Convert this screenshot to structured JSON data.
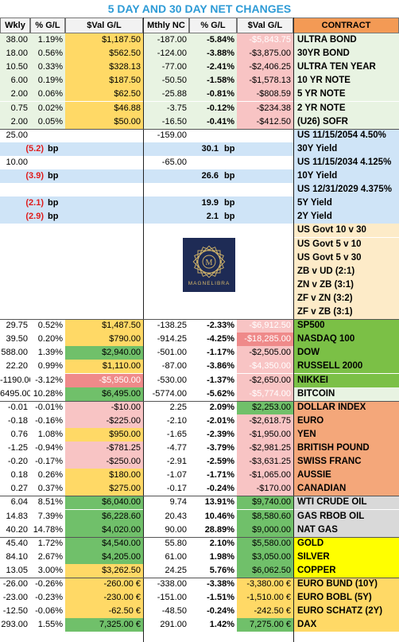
{
  "title": "5 DAY AND 30 DAY NET CHANGES",
  "headers": [
    "Wkly NC",
    "% G/L",
    "$Val G/L",
    "Mthly NC",
    "% G/L",
    "$Val G/L",
    "CONTRACT"
  ],
  "logo_text": "MAGNELIBRA",
  "logo_mark": "M",
  "bp_unit": "bp",
  "rows": [
    {
      "bg": "#e8f3e2",
      "w": "38.00",
      "wp": "1.19%",
      "wv": "$1,187.50",
      "wvc": "yl",
      "m": "-187.00",
      "mp": "-5.84%",
      "mv": "-$5,843.75",
      "mvc": "pk",
      "mvcol": "#ffffff",
      "c": "ULTRA BOND"
    },
    {
      "bg": "#e8f3e2",
      "w": "18.00",
      "wp": "0.56%",
      "wv": "$562.50",
      "wvc": "yl",
      "m": "-124.00",
      "mp": "-3.88%",
      "mv": "-$3,875.00",
      "mvc": "pk",
      "c": "30YR BOND"
    },
    {
      "bg": "#e8f3e2",
      "w": "10.50",
      "wp": "0.33%",
      "wv": "$328.13",
      "wvc": "yl",
      "m": "-77.00",
      "mp": "-2.41%",
      "mv": "-$2,406.25",
      "mvc": "pk",
      "c": "ULTRA TEN YEAR"
    },
    {
      "bg": "#e8f3e2",
      "w": "6.00",
      "wp": "0.19%",
      "wv": "$187.50",
      "wvc": "yl",
      "m": "-50.50",
      "mp": "-1.58%",
      "mv": "-$1,578.13",
      "mvc": "pk",
      "c": "10 YR NOTE"
    },
    {
      "bg": "#e8f3e2",
      "w": "2.00",
      "wp": "0.06%",
      "wv": "$62.50",
      "wvc": "yl",
      "m": "-25.88",
      "mp": "-0.81%",
      "mv": "-$808.59",
      "mvc": "pk",
      "c": "5 YR NOTE"
    },
    {
      "bg": "#e8f3e2",
      "w": "0.75",
      "wp": "0.02%",
      "wv": "$46.88",
      "wvc": "yl",
      "m": "-3.75",
      "mp": "-0.12%",
      "mv": "-$234.38",
      "mvc": "pk",
      "c": "2 YR NOTE"
    },
    {
      "bg": "#e8f3e2",
      "w": "2.00",
      "wp": "0.05%",
      "wv": "$50.00",
      "wvc": "yl",
      "m": "-16.50",
      "mp": "-0.41%",
      "mv": "-$412.50",
      "mvc": "pk",
      "c": "(U26) SOFR"
    },
    {
      "bg": "#ffffff",
      "w": "25.00",
      "m": "-159.00",
      "c": "US 11/15/2054 4.50%",
      "cc": "#cfe4f7"
    },
    {
      "bg": "#cfe4f7",
      "bp": true,
      "w": "(5.2)",
      "m": "30.1",
      "c": "30Y Yield"
    },
    {
      "bg": "#ffffff",
      "w": "10.00",
      "m": "-65.00",
      "c": "US 11/15/2034 4.125%",
      "cc": "#cfe4f7"
    },
    {
      "bg": "#cfe4f7",
      "bp": true,
      "w": "(3.9)",
      "m": "26.6",
      "c": "10Y Yield"
    },
    {
      "bg": "#ffffff",
      "c": "US 12/31/2029 4.375%",
      "cc": "#cfe4f7"
    },
    {
      "bg": "#cfe4f7",
      "bp": true,
      "w": "(2.1)",
      "m": "19.9",
      "c": "5Y Yield"
    },
    {
      "bg": "#cfe4f7",
      "bp": true,
      "w": "(2.9)",
      "m": "2.1",
      "c": "2Y Yield"
    },
    {
      "bg": "#ffffff",
      "c": "US Govt 10 v 30",
      "cc": "#fdebc8"
    },
    {
      "bg": "#ffffff",
      "c": "US Govt 5 v 10",
      "cc": "#fdebc8"
    },
    {
      "bg": "#ffffff",
      "c": "US Govt 5 v 30",
      "cc": "#fdebc8"
    },
    {
      "bg": "#ffffff",
      "c": "ZB v UD (2:1)",
      "cc": "#fdebc8"
    },
    {
      "bg": "#ffffff",
      "c": "ZN v ZB (3:1)",
      "cc": "#fdebc8"
    },
    {
      "bg": "#ffffff",
      "c": "ZF v ZN (3:2)",
      "cc": "#fdebc8"
    },
    {
      "bg": "#ffffff",
      "c": "ZF v ZB (3:1)",
      "cc": "#fdebc8"
    },
    {
      "bg": "#ffffff",
      "w": "29.75",
      "wp": "0.52%",
      "wv": "$1,487.50",
      "wvc": "yl",
      "m": "-138.25",
      "mp": "-2.33%",
      "mv": "-$6,912.50",
      "mvc": "pk",
      "mvcol": "#ffffff",
      "c": "SP500",
      "cc": "#7bc046"
    },
    {
      "bg": "#ffffff",
      "w": "39.50",
      "wp": "0.20%",
      "wv": "$790.00",
      "wvc": "yl",
      "m": "-914.25",
      "mp": "-4.25%",
      "mv": "-$18,285.00",
      "mvc": "pkd",
      "mvcol": "#ffffff",
      "c": "NASDAQ 100",
      "cc": "#7bc046"
    },
    {
      "bg": "#ffffff",
      "w": "588.00",
      "wp": "1.39%",
      "wv": "$2,940.00",
      "wvc": "grn",
      "m": "-501.00",
      "mp": "-1.17%",
      "mv": "-$2,505.00",
      "mvc": "pk",
      "c": "DOW",
      "cc": "#7bc046"
    },
    {
      "bg": "#ffffff",
      "w": "22.20",
      "wp": "0.99%",
      "wv": "$1,110.00",
      "wvc": "yl",
      "m": "-87.00",
      "mp": "-3.86%",
      "mv": "-$4,350.00",
      "mvc": "pk",
      "mvcol": "#ffffff",
      "c": "RUSSELL 2000",
      "cc": "#7bc046"
    },
    {
      "bg": "#ffffff",
      "w": "-1190.00",
      "wp": "-3.12%",
      "wv": "-$5,950.00",
      "wvc": "pkd",
      "wvcol": "#ffffff",
      "m": "-530.00",
      "mp": "-1.37%",
      "mv": "-$2,650.00",
      "mvc": "pk",
      "c": "NIKKEI",
      "cc": "#7bc046"
    },
    {
      "bg": "#ffffff",
      "w": "6495.00",
      "wp": "10.28%",
      "wv": "$6,495.00",
      "wvc": "grn",
      "m": "-5774.00",
      "mp": "-5.62%",
      "mv": "-$5,774.00",
      "mvc": "pk",
      "mvcol": "#ffffff",
      "c": "BITCOIN",
      "cc": "#e8f3e2"
    },
    {
      "bg": "#ffffff",
      "w": "-0.01",
      "wp": "-0.01%",
      "wv": "-$10.00",
      "wvc": "pk",
      "m": "2.25",
      "mp": "2.09%",
      "mv": "$2,253.00",
      "mvc": "grn",
      "c": "DOLLAR INDEX",
      "cc": "#f4a77a"
    },
    {
      "bg": "#ffffff",
      "w": "-0.18",
      "wp": "-0.16%",
      "wv": "-$225.00",
      "wvc": "pk",
      "m": "-2.10",
      "mp": "-2.01%",
      "mv": "-$2,618.75",
      "mvc": "pk",
      "c": "EURO",
      "cc": "#f4a77a"
    },
    {
      "bg": "#ffffff",
      "w": "0.76",
      "wp": "1.08%",
      "wv": "$950.00",
      "wvc": "yl",
      "m": "-1.65",
      "mp": "-2.39%",
      "mv": "-$1,950.00",
      "mvc": "pk",
      "c": "YEN",
      "cc": "#f4a77a"
    },
    {
      "bg": "#ffffff",
      "w": "-1.25",
      "wp": "-0.94%",
      "wv": "-$781.25",
      "wvc": "pk",
      "m": "-4.77",
      "mp": "-3.79%",
      "mv": "-$2,981.25",
      "mvc": "pk",
      "c": "BRITISH POUND",
      "cc": "#f4a77a"
    },
    {
      "bg": "#ffffff",
      "w": "-0.20",
      "wp": "-0.17%",
      "wv": "-$250.00",
      "wvc": "pk",
      "m": "-2.91",
      "mp": "-2.59%",
      "mv": "-$3,631.25",
      "mvc": "pk",
      "c": "SWISS FRANC",
      "cc": "#f4a77a"
    },
    {
      "bg": "#ffffff",
      "w": "0.18",
      "wp": "0.26%",
      "wv": "$180.00",
      "wvc": "yl",
      "m": "-1.07",
      "mp": "-1.71%",
      "mv": "-$1,065.00",
      "mvc": "pk",
      "c": "AUSSIE",
      "cc": "#f4a77a"
    },
    {
      "bg": "#ffffff",
      "w": "0.27",
      "wp": "0.37%",
      "wv": "$275.00",
      "wvc": "yl",
      "m": "-0.17",
      "mp": "-0.24%",
      "mv": "-$170.00",
      "mvc": "pk",
      "c": "CANADIAN",
      "cc": "#f4a77a"
    },
    {
      "bg": "#ffffff",
      "w": "6.04",
      "wp": "8.51%",
      "wv": "$6,040.00",
      "wvc": "grn",
      "m": "9.74",
      "mp": "13.91%",
      "mv": "$9,740.00",
      "mvc": "grn",
      "c": "WTI CRUDE OIL",
      "cc": "#d9d9d9"
    },
    {
      "bg": "#ffffff",
      "w": "14.83",
      "wp": "7.39%",
      "wv": "$6,228.60",
      "wvc": "grn",
      "m": "20.43",
      "mp": "10.46%",
      "mv": "$8,580.60",
      "mvc": "grn",
      "c": "GAS RBOB OIL",
      "cc": "#d9d9d9"
    },
    {
      "bg": "#ffffff",
      "w": "40.20",
      "wp": "14.78%",
      "wv": "$4,020.00",
      "wvc": "grn",
      "m": "90.00",
      "mp": "28.89%",
      "mv": "$9,000.00",
      "mvc": "grn",
      "c": "NAT GAS",
      "cc": "#d9d9d9"
    },
    {
      "bg": "#ffffff",
      "w": "45.40",
      "wp": "1.72%",
      "wv": "$4,540.00",
      "wvc": "grn",
      "m": "55.80",
      "mp": "2.10%",
      "mv": "$5,580.00",
      "mvc": "grn",
      "c": "GOLD",
      "cc": "#ffff00"
    },
    {
      "bg": "#ffffff",
      "w": "84.10",
      "wp": "2.67%",
      "wv": "$4,205.00",
      "wvc": "grn",
      "m": "61.00",
      "mp": "1.98%",
      "mv": "$3,050.00",
      "mvc": "grn",
      "c": "SILVER",
      "cc": "#ffff00"
    },
    {
      "bg": "#ffffff",
      "w": "13.05",
      "wp": "3.00%",
      "wv": "$3,262.50",
      "wvc": "yl",
      "m": "24.25",
      "mp": "5.76%",
      "mv": "$6,062.50",
      "mvc": "grn",
      "c": "COPPER",
      "cc": "#ffff00"
    },
    {
      "bg": "#ffffff",
      "w": "-26.00",
      "wp": "-0.26%",
      "wv": "-260.00 €",
      "wvc": "yl",
      "m": "-338.00",
      "mp": "-3.38%",
      "mv": "-3,380.00 €",
      "mvc": "yl",
      "c": "EURO BUND (10Y)",
      "cc": "#ffd966"
    },
    {
      "bg": "#ffffff",
      "w": "-23.00",
      "wp": "-0.23%",
      "wv": "-230.00 €",
      "wvc": "yl",
      "m": "-151.00",
      "mp": "-1.51%",
      "mv": "-1,510.00 €",
      "mvc": "yl",
      "c": "EURO BOBL (5Y)",
      "cc": "#ffd966"
    },
    {
      "bg": "#ffffff",
      "w": "-12.50",
      "wp": "-0.06%",
      "wv": "-62.50 €",
      "wvc": "yl",
      "m": "-48.50",
      "mp": "-0.24%",
      "mv": "-242.50 €",
      "mvc": "yl",
      "c": "EURO SCHATZ (2Y)",
      "cc": "#ffd966"
    },
    {
      "bg": "#ffffff",
      "w": "293.00",
      "wp": "1.55%",
      "wv": "7,325.00 €",
      "wvc": "grn",
      "m": "291.00",
      "mp": "1.42%",
      "mv": "7,275.00 €",
      "mvc": "grn",
      "c": "DAX",
      "cc": "#ffd966"
    }
  ]
}
